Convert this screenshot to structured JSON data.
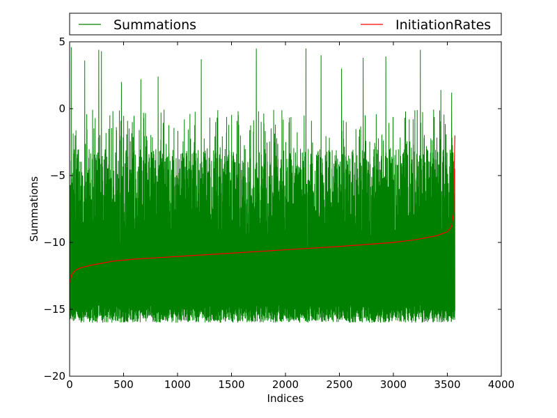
{
  "chart_data": {
    "type": "line",
    "xlabel": "Indices",
    "ylabel": "Summations",
    "xlim": [
      0,
      4000
    ],
    "ylim": [
      -20,
      5
    ],
    "xticks": [
      0,
      500,
      1000,
      1500,
      2000,
      2500,
      3000,
      3500,
      4000
    ],
    "yticks": [
      5,
      0,
      -5,
      -10,
      -15,
      -20
    ],
    "ytick_labels": [
      "5",
      "0",
      "−5",
      "−10",
      "−15",
      "−20"
    ],
    "grid": false,
    "legend": {
      "placement": "top, outside the plot area, spanning full width",
      "entries": [
        "Summations",
        "InitiationRates"
      ]
    },
    "series": [
      {
        "name": "Summations",
        "color": "#008000",
        "n_points": 3570,
        "x_range": [
          0,
          3570
        ],
        "description_values": {
          "min": -16.2,
          "max": 4.6,
          "typical_low": -15.6,
          "typical_high": -3.0
        },
        "spikes": [
          {
            "x": 15,
            "y": 4.6
          },
          {
            "x": 140,
            "y": 3.6
          },
          {
            "x": 270,
            "y": 4.4
          },
          {
            "x": 295,
            "y": 4.3
          },
          {
            "x": 480,
            "y": 2.0
          },
          {
            "x": 660,
            "y": 2.2
          },
          {
            "x": 820,
            "y": 2.4
          },
          {
            "x": 1220,
            "y": 3.7
          },
          {
            "x": 1730,
            "y": 4.5
          },
          {
            "x": 2190,
            "y": 4.5
          },
          {
            "x": 2330,
            "y": 4.0
          },
          {
            "x": 2520,
            "y": 3.0
          },
          {
            "x": 2720,
            "y": 3.8
          },
          {
            "x": 2930,
            "y": 3.9
          },
          {
            "x": 3250,
            "y": 4.4
          },
          {
            "x": 3440,
            "y": 1.4
          },
          {
            "x": 3540,
            "y": 1.2
          }
        ]
      },
      {
        "name": "InitiationRates",
        "color": "#ff0000",
        "points": [
          [
            0,
            -13.0
          ],
          [
            20,
            -12.4
          ],
          [
            50,
            -12.1
          ],
          [
            100,
            -11.9
          ],
          [
            200,
            -11.7
          ],
          [
            400,
            -11.4
          ],
          [
            600,
            -11.25
          ],
          [
            800,
            -11.15
          ],
          [
            1000,
            -11.05
          ],
          [
            1500,
            -10.8
          ],
          [
            2000,
            -10.55
          ],
          [
            2500,
            -10.3
          ],
          [
            3000,
            -10.0
          ],
          [
            3200,
            -9.8
          ],
          [
            3400,
            -9.5
          ],
          [
            3500,
            -9.2
          ],
          [
            3540,
            -8.8
          ],
          [
            3560,
            -7.7
          ],
          [
            3565,
            -4.0
          ],
          [
            3570,
            -2.0
          ]
        ]
      }
    ]
  }
}
